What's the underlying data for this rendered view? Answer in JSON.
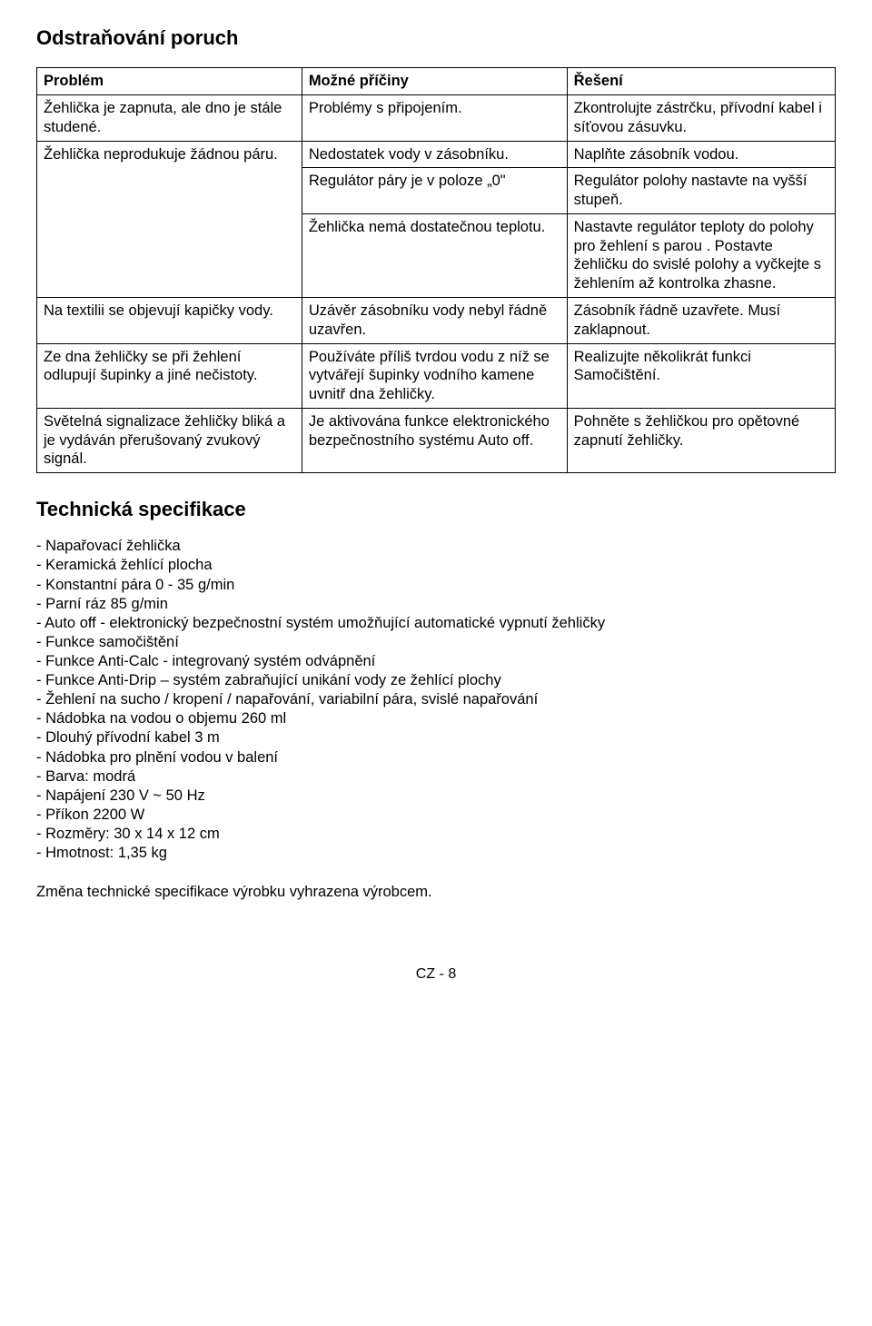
{
  "title": "Odstraňování poruch",
  "table": {
    "headers": [
      "Problém",
      "Možné příčiny",
      "Řešení"
    ],
    "rows": [
      {
        "problem": "Žehlička je zapnuta, ale dno je stále studené.",
        "cause": "Problémy s připojením.",
        "solution": "Zkontrolujte zástrčku, přívodní kabel i síťovou zásuvku."
      },
      {
        "problem": "Žehlička neprodukuje žádnou páru.",
        "problem_rowspan": 3,
        "cause": "Nedostatek vody v zásobníku.",
        "solution": "Naplňte zásobník vodou."
      },
      {
        "cause": "Regulátor páry je v poloze „0\"",
        "solution": "Regulátor polohy nastavte na vyšší stupeň."
      },
      {
        "cause": "Žehlička nemá dostatečnou teplotu.",
        "solution": "Nastavte regulátor teploty do polohy pro žehlení s parou . Postavte žehličku do svislé polohy a vyčkejte s žehlením až kontrolka zhasne."
      },
      {
        "problem": "Na textilii se objevují kapičky vody.",
        "cause": "Uzávěr zásobníku vody nebyl řádně uzavřen.",
        "solution": "Zásobník řádně uzavřete. Musí zaklapnout."
      },
      {
        "problem": "Ze dna žehličky se při žehlení odlupují šupinky a jiné nečistoty.",
        "cause": "Používáte příliš tvrdou vodu z níž se vytvářejí šupinky vodního kamene uvnitř dna žehličky.",
        "solution": "Realizujte několikrát funkci Samočištění."
      },
      {
        "problem": "Světelná signalizace žehličky bliká a je vydáván přerušovaný zvukový signál.",
        "cause": "Je aktivována funkce elektronického bezpečnostního systému Auto off.",
        "solution": "Pohněte s žehličkou pro opětovné zapnutí  žehličky."
      }
    ]
  },
  "specs_title": "Technická specifikace",
  "specs": [
    "- Napařovací žehlička",
    "- Keramická žehlící plocha",
    "- Konstantní pára 0 - 35 g/min",
    "- Parní ráz 85 g/min",
    "- Auto off - elektronický bezpečnostní systém umožňující automatické vypnutí žehličky",
    "- Funkce samočištění",
    "- Funkce Anti-Calc - integrovaný systém odvápnění",
    "- Funkce Anti-Drip – systém zabraňující unikání vody ze žehlící plochy",
    "- Žehlení na sucho / kropení / napařování, variabilní pára, svislé napařování",
    "- Nádobka na vodou o objemu 260 ml",
    "- Dlouhý přívodní kabel 3 m",
    "- Nádobka pro plnění vodou v balení",
    "- Barva: modrá",
    "- Napájení 230 V ~ 50 Hz",
    "- Příkon 2200 W",
    "- Rozměry: 30 x 14 x 12 cm",
    "- Hmotnost: 1,35 kg"
  ],
  "note": "Změna technické specifikace výrobku vyhrazena výrobcem.",
  "footer": "CZ - 8"
}
